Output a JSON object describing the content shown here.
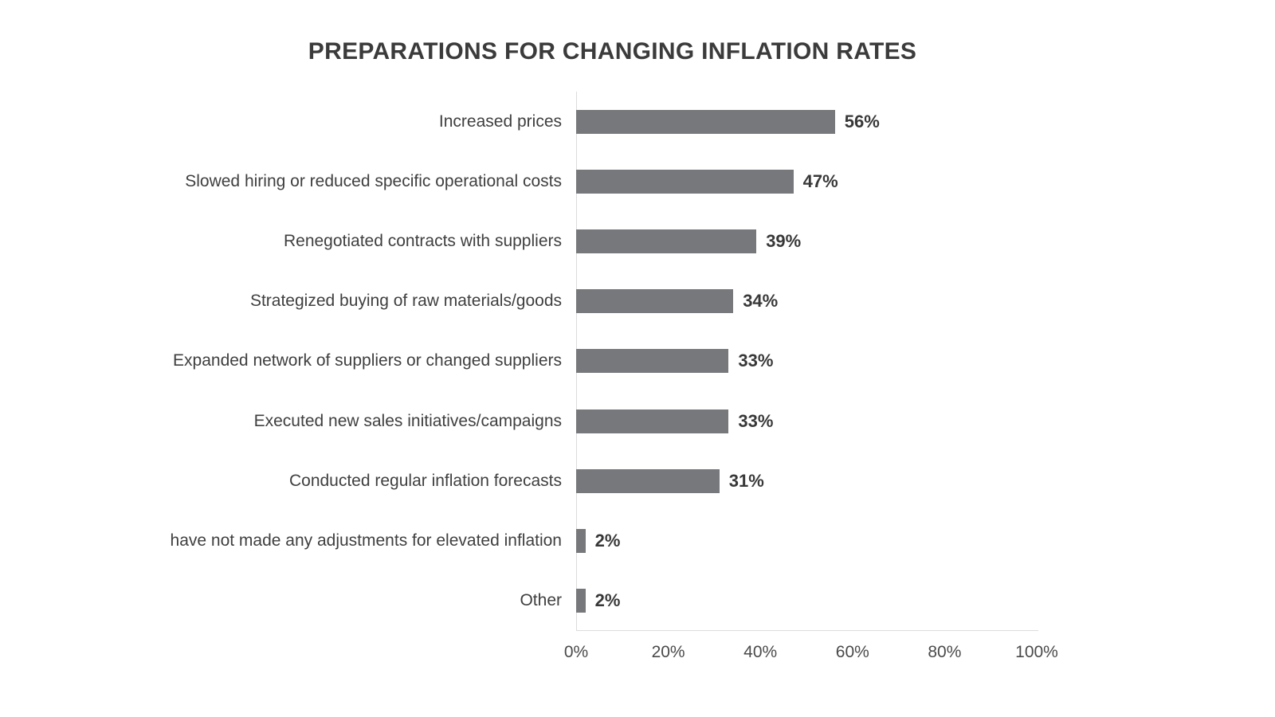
{
  "chart_data": {
    "type": "bar",
    "orientation": "horizontal",
    "title": "PREPARATIONS FOR CHANGING INFLATION RATES",
    "categories": [
      "Increased prices",
      "Slowed hiring or reduced specific operational costs",
      "Renegotiated contracts with suppliers",
      "Strategized buying of raw materials/goods",
      "Expanded network of suppliers or changed suppliers",
      "Executed new sales initiatives/campaigns",
      "Conducted regular inflation forecasts",
      "have not made any adjustments for elevated inflation",
      "Other"
    ],
    "values": [
      56,
      47,
      39,
      34,
      33,
      33,
      31,
      2,
      2
    ],
    "value_labels": [
      "56%",
      "47%",
      "39%",
      "34%",
      "33%",
      "33%",
      "31%",
      "2%",
      "2%"
    ],
    "xlabel": "",
    "ylabel": "",
    "xlim": [
      0,
      100
    ],
    "xticks": [
      "0%",
      "20%",
      "40%",
      "60%",
      "80%",
      "100%"
    ],
    "grid": false,
    "legend": false,
    "colors": {
      "bar": "#77787B",
      "title_text": "#3B3B3B",
      "label_text": "#3F3F3F",
      "value_text": "#383838",
      "tick_text": "#4A4A4A",
      "axis_line": "#DCDCDC",
      "background": "#FFFFFF"
    }
  }
}
